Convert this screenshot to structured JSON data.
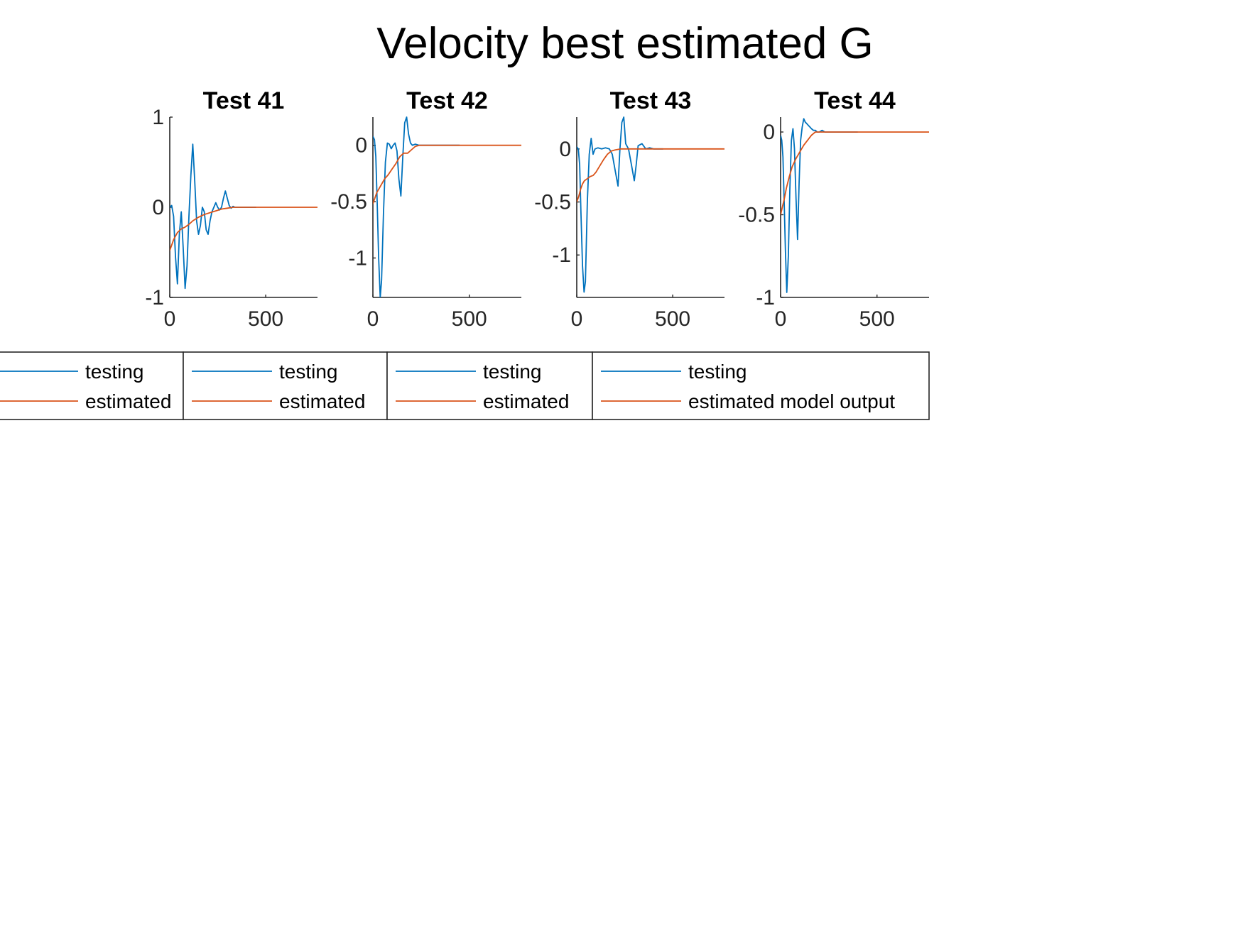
{
  "figure": {
    "title": "Velocity best estimated G"
  },
  "colors": {
    "testing": "#0072BD",
    "estimated": "#D95319",
    "axis": "#262626",
    "legend_border": "#262626"
  },
  "chart_data": [
    {
      "type": "line",
      "title": "Test 41",
      "xlim": [
        0,
        770
      ],
      "ylim": [
        -1,
        1
      ],
      "xticks": [
        0,
        500
      ],
      "xtick_labels": [
        "0",
        "500"
      ],
      "yticks": [
        -1,
        0,
        1
      ],
      "ytick_labels": [
        "-1",
        "0",
        "1"
      ],
      "legend": [
        "testing",
        "estimated"
      ],
      "series": [
        {
          "name": "testing",
          "x": [
            0,
            10,
            20,
            30,
            40,
            50,
            60,
            70,
            80,
            90,
            100,
            110,
            120,
            130,
            140,
            150,
            160,
            170,
            180,
            190,
            200,
            210,
            220,
            230,
            240,
            250,
            260,
            270,
            280,
            290,
            300,
            310,
            320,
            330,
            340,
            350,
            360,
            380,
            400,
            420,
            450
          ],
          "y": [
            0.0,
            0.02,
            -0.1,
            -0.55,
            -0.85,
            -0.3,
            -0.05,
            -0.45,
            -0.9,
            -0.65,
            -0.1,
            0.35,
            0.7,
            0.3,
            -0.15,
            -0.3,
            -0.2,
            0.0,
            -0.05,
            -0.25,
            -0.3,
            -0.15,
            -0.05,
            0.0,
            0.05,
            0.0,
            -0.03,
            0.0,
            0.1,
            0.18,
            0.1,
            0.02,
            -0.01,
            0.01,
            0.0,
            0.0,
            0.0,
            0.0,
            0.0,
            0.0,
            0.0
          ]
        },
        {
          "name": "estimated",
          "x": [
            0,
            10,
            20,
            40,
            60,
            80,
            100,
            120,
            150,
            180,
            210,
            240,
            270,
            300,
            330,
            360,
            400,
            500,
            600,
            700,
            770
          ],
          "y": [
            -0.48,
            -0.42,
            -0.36,
            -0.28,
            -0.24,
            -0.22,
            -0.19,
            -0.15,
            -0.11,
            -0.08,
            -0.06,
            -0.04,
            -0.02,
            -0.01,
            0.0,
            0.0,
            0.0,
            0.0,
            0.0,
            0.0,
            0.0
          ]
        }
      ]
    },
    {
      "type": "line",
      "title": "Test 42",
      "xlim": [
        0,
        770
      ],
      "ylim": [
        -1.35,
        0.25
      ],
      "xticks": [
        0,
        500
      ],
      "xtick_labels": [
        "0",
        "500"
      ],
      "yticks": [
        -1,
        -0.5,
        0
      ],
      "ytick_labels": [
        "-1",
        "-0.5",
        "0"
      ],
      "legend": [
        "testing",
        "estimated"
      ],
      "series": [
        {
          "name": "testing",
          "x": [
            0,
            8,
            15,
            22,
            30,
            38,
            45,
            55,
            65,
            75,
            85,
            95,
            105,
            115,
            125,
            135,
            145,
            155,
            165,
            175,
            185,
            195,
            205,
            220,
            240,
            270,
            300,
            350,
            400,
            450
          ],
          "y": [
            0.08,
            0.05,
            -0.1,
            -0.5,
            -1.0,
            -1.35,
            -1.2,
            -0.6,
            -0.15,
            0.02,
            0.01,
            -0.03,
            0.0,
            0.02,
            -0.05,
            -0.3,
            -0.45,
            -0.1,
            0.2,
            0.25,
            0.1,
            0.02,
            0.0,
            0.01,
            0.0,
            0.0,
            0.0,
            0.0,
            0.0,
            0.0
          ]
        },
        {
          "name": "estimated",
          "x": [
            0,
            10,
            20,
            40,
            60,
            80,
            100,
            120,
            140,
            160,
            180,
            200,
            220,
            240,
            260,
            300,
            400,
            500,
            600,
            700,
            770
          ],
          "y": [
            -0.52,
            -0.47,
            -0.42,
            -0.36,
            -0.3,
            -0.26,
            -0.21,
            -0.16,
            -0.1,
            -0.07,
            -0.07,
            -0.04,
            -0.01,
            0.0,
            0.0,
            0.0,
            0.0,
            0.0,
            0.0,
            0.0,
            0.0
          ]
        }
      ]
    },
    {
      "type": "line",
      "title": "Test 43",
      "xlim": [
        0,
        770
      ],
      "ylim": [
        -1.4,
        0.3
      ],
      "xticks": [
        0,
        500
      ],
      "xtick_labels": [
        "0",
        "500"
      ],
      "yticks": [
        -1,
        -0.5,
        0
      ],
      "ytick_labels": [
        "-1",
        "-0.5",
        "0"
      ],
      "legend": [
        "testing",
        "estimated"
      ],
      "series": [
        {
          "name": "testing",
          "x": [
            0,
            8,
            15,
            22,
            30,
            38,
            45,
            55,
            65,
            75,
            85,
            95,
            110,
            130,
            150,
            170,
            185,
            200,
            215,
            225,
            235,
            245,
            255,
            270,
            285,
            300,
            310,
            320,
            340,
            360,
            380,
            400,
            450
          ],
          "y": [
            0.02,
            0.0,
            -0.15,
            -0.6,
            -1.1,
            -1.35,
            -1.25,
            -0.5,
            -0.05,
            0.1,
            -0.05,
            0.0,
            0.01,
            0.0,
            0.01,
            0.0,
            -0.05,
            -0.2,
            -0.35,
            0.0,
            0.25,
            0.3,
            0.05,
            0.0,
            -0.15,
            -0.3,
            -0.15,
            0.03,
            0.05,
            0.0,
            0.01,
            0.0,
            0.0
          ]
        },
        {
          "name": "estimated",
          "x": [
            0,
            10,
            20,
            30,
            40,
            55,
            70,
            85,
            100,
            120,
            140,
            160,
            180,
            200,
            230,
            260,
            300,
            400,
            500,
            600,
            700,
            770
          ],
          "y": [
            -0.5,
            -0.45,
            -0.38,
            -0.33,
            -0.3,
            -0.28,
            -0.26,
            -0.25,
            -0.22,
            -0.16,
            -0.1,
            -0.05,
            -0.02,
            -0.01,
            0.0,
            0.0,
            0.0,
            0.0,
            0.0,
            0.0,
            0.0,
            0.0
          ]
        }
      ]
    },
    {
      "type": "line",
      "title": "Test 44",
      "xlim": [
        0,
        770
      ],
      "ylim": [
        -1.0,
        0.09
      ],
      "xticks": [
        0,
        500
      ],
      "xtick_labels": [
        "0",
        "500"
      ],
      "yticks": [
        -1,
        -0.5,
        0
      ],
      "ytick_labels": [
        "-1",
        "-0.5",
        "0"
      ],
      "legend": [
        "testing",
        "estimated model output"
      ],
      "series": [
        {
          "name": "testing",
          "x": [
            0,
            6,
            12,
            18,
            25,
            32,
            40,
            48,
            56,
            64,
            72,
            80,
            88,
            96,
            104,
            112,
            120,
            128,
            136,
            144,
            152,
            160,
            170,
            180,
            190,
            200,
            215,
            230,
            250,
            280,
            320,
            360,
            400
          ],
          "y": [
            -0.02,
            -0.05,
            -0.15,
            -0.4,
            -0.72,
            -0.97,
            -0.75,
            -0.35,
            -0.05,
            0.02,
            -0.1,
            -0.4,
            -0.65,
            -0.3,
            -0.05,
            0.03,
            0.08,
            0.06,
            0.05,
            0.04,
            0.03,
            0.02,
            0.01,
            0.01,
            0.0,
            0.0,
            0.01,
            0.0,
            0.0,
            0.0,
            0.0,
            0.0,
            0.0
          ]
        },
        {
          "name": "estimated",
          "x": [
            0,
            10,
            20,
            30,
            45,
            60,
            80,
            100,
            120,
            140,
            160,
            180,
            200,
            220,
            250,
            300,
            400,
            500,
            600,
            700,
            770
          ],
          "y": [
            -0.5,
            -0.45,
            -0.4,
            -0.34,
            -0.27,
            -0.21,
            -0.16,
            -0.12,
            -0.08,
            -0.05,
            -0.02,
            0.0,
            0.0,
            0.0,
            0.0,
            0.0,
            0.0,
            0.0,
            0.0,
            0.0,
            0.0
          ]
        }
      ]
    }
  ]
}
